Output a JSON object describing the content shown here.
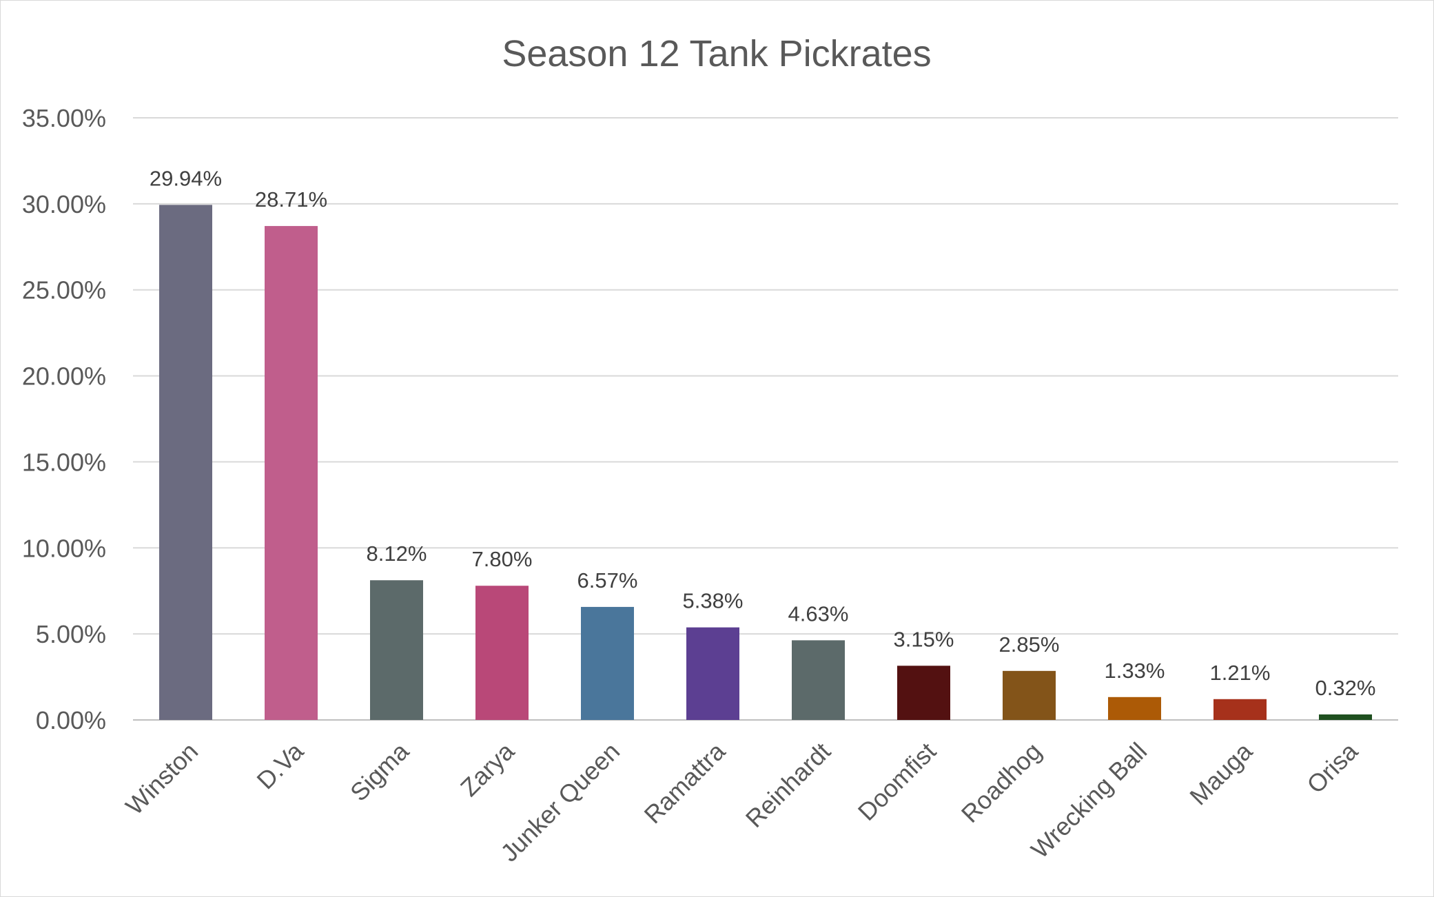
{
  "chart_data": {
    "type": "bar",
    "title": "Season 12 Tank Pickrates",
    "xlabel": "",
    "ylabel": "",
    "ylim": [
      0,
      35
    ],
    "yticks": [
      0,
      5,
      10,
      15,
      20,
      25,
      30,
      35
    ],
    "ytick_labels": [
      "0.00%",
      "5.00%",
      "10.00%",
      "15.00%",
      "20.00%",
      "25.00%",
      "30.00%",
      "35.00%"
    ],
    "grid": true,
    "legend": "none",
    "categories": [
      "Winston",
      "D.Va",
      "Sigma",
      "Zarya",
      "Junker Queen",
      "Ramattra",
      "Reinhardt",
      "Doomfist",
      "Roadhog",
      "Wrecking Ball",
      "Mauga",
      "Orisa"
    ],
    "values": [
      29.94,
      28.71,
      8.12,
      7.8,
      6.57,
      5.38,
      4.63,
      3.15,
      2.85,
      1.33,
      1.21,
      0.32
    ],
    "value_labels": [
      "29.94%",
      "28.71%",
      "8.12%",
      "7.80%",
      "6.57%",
      "5.38%",
      "4.63%",
      "3.15%",
      "2.85%",
      "1.33%",
      "1.21%",
      "0.32%"
    ],
    "colors": [
      "#6b6b80",
      "#c05e8c",
      "#5c6a6a",
      "#b94878",
      "#4a769b",
      "#5c3f92",
      "#5c6a6a",
      "#531111",
      "#835419",
      "#ac5a06",
      "#a6311b",
      "#1f5020"
    ]
  }
}
